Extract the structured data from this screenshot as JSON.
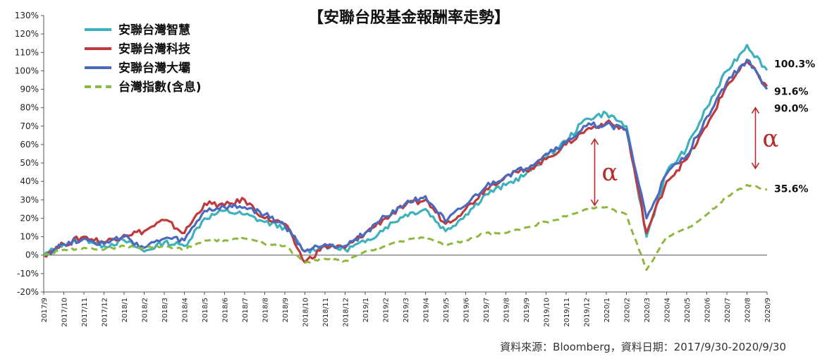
{
  "chart_data": {
    "type": "line",
    "title": "【安聯台股基金報酬率走勢】",
    "source": "資料來源：Bloomberg，資料日期：2017/9/30-2020/9/30",
    "yticks": [
      "130%",
      "120%",
      "110%",
      "100%",
      "90%",
      "80%",
      "70%",
      "60%",
      "50%",
      "40%",
      "30%",
      "20%",
      "10%",
      "0%",
      "-10%",
      "-20%"
    ],
    "ylim": [
      -20,
      130
    ],
    "categories": [
      "2017/9",
      "2017/10",
      "2017/11",
      "2017/12",
      "2018/1",
      "2018/2",
      "2018/3",
      "2018/4",
      "2018/5",
      "2018/6",
      "2018/7",
      "2018/8",
      "2018/9",
      "2018/10",
      "2018/11",
      "2018/12",
      "2019/1",
      "2019/2",
      "2019/3",
      "2019/4",
      "2019/5",
      "2019/6",
      "2019/7",
      "2019/8",
      "2019/9",
      "2019/10",
      "2019/11",
      "2019/12",
      "2020/1",
      "2020/2",
      "2020/3",
      "2020/4",
      "2020/5",
      "2020/6",
      "2020/7",
      "2020/8",
      "2020/9"
    ],
    "series": [
      {
        "name": "安聯台灣智慧",
        "color": "#3fb1bd",
        "dash": false,
        "end_label": "100.3%",
        "values": [
          0,
          6,
          9,
          5,
          8,
          2,
          7,
          5,
          20,
          24,
          22,
          18,
          15,
          2,
          5,
          3,
          7,
          15,
          22,
          25,
          13,
          22,
          33,
          38,
          44,
          53,
          62,
          74,
          77,
          70,
          10,
          45,
          58,
          80,
          100,
          114,
          100.3
        ]
      },
      {
        "name": "安聯台灣科技",
        "color": "#c0393b",
        "dash": false,
        "end_label": "91.6%",
        "values": [
          0,
          6,
          10,
          7,
          11,
          13,
          19,
          12,
          28,
          27,
          30,
          20,
          17,
          -4,
          5,
          4,
          12,
          20,
          27,
          30,
          17,
          25,
          36,
          43,
          46,
          52,
          60,
          68,
          72,
          68,
          12,
          40,
          52,
          70,
          92,
          105,
          91.6
        ]
      },
      {
        "name": "安聯台灣大壩",
        "color": "#4a6bbd",
        "dash": false,
        "end_label": "90.0%",
        "values": [
          0,
          6,
          9,
          6,
          10,
          4,
          9,
          8,
          24,
          26,
          26,
          22,
          16,
          2,
          6,
          5,
          12,
          21,
          28,
          32,
          18,
          27,
          37,
          43,
          47,
          55,
          61,
          70,
          71,
          68,
          20,
          44,
          54,
          75,
          94,
          106,
          90.0
        ]
      },
      {
        "name": "台灣指數(含息)",
        "color": "#8db83e",
        "dash": true,
        "end_label": "35.6%",
        "values": [
          0,
          3,
          4,
          3,
          5,
          4,
          5,
          3,
          8,
          8,
          9,
          6,
          5,
          -4,
          -2,
          -3,
          2,
          5,
          8,
          10,
          5,
          8,
          12,
          12,
          15,
          18,
          21,
          25,
          26,
          22,
          -8,
          10,
          14,
          22,
          32,
          38,
          35.6
        ]
      }
    ],
    "annotations": [
      {
        "text": "α",
        "x": "2019/12",
        "from": 27,
        "to": 63
      },
      {
        "text": "α",
        "x": "2020/8",
        "from": 47,
        "to": 80
      }
    ],
    "legend_position": "top-left",
    "grid": false
  }
}
